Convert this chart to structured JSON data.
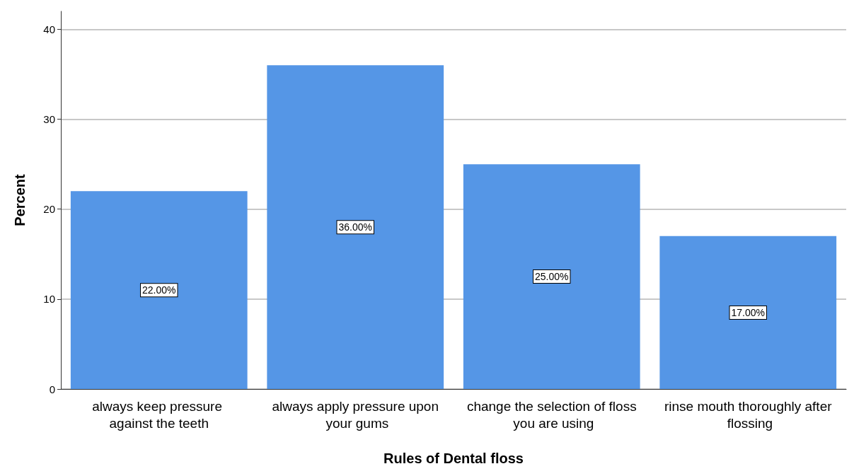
{
  "chart_data": {
    "type": "bar",
    "xlabel": "Rules of Dental floss",
    "ylabel": "Percent",
    "categories": [
      "always keep pressure against the teeth",
      "always apply pressure upon your gums",
      "change the selection of floss you are using",
      "rinse mouth thoroughly after flossing"
    ],
    "values": [
      22,
      36,
      25,
      17
    ],
    "value_labels": [
      "22.00%",
      "36.00%",
      "25.00%",
      "17.00%"
    ],
    "color": "#5596e6",
    "ylim": [
      0,
      42
    ],
    "yticks": [
      0,
      10,
      20,
      30,
      40
    ],
    "grid": "y"
  }
}
